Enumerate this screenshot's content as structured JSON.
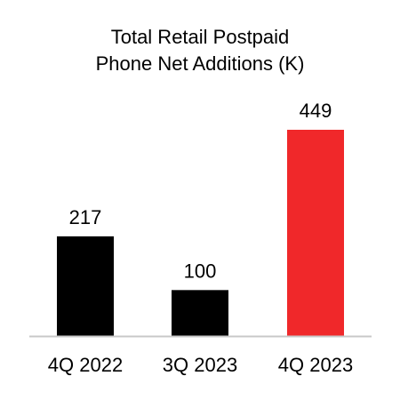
{
  "chart_data": {
    "type": "bar",
    "title_lines": [
      "Total Retail Postpaid",
      "Phone Net Additions (K)"
    ],
    "categories": [
      "4Q 2022",
      "3Q 2023",
      "4Q 2023"
    ],
    "values": [
      217,
      100,
      449
    ],
    "data_labels": [
      "217",
      "100",
      "449"
    ],
    "colors": [
      "#000000",
      "#000000",
      "#f0282a"
    ],
    "axis_color": "#c8c8c8",
    "ylim": [
      0,
      449
    ],
    "grid": false,
    "legend": "none",
    "xlabel": "",
    "ylabel": ""
  }
}
